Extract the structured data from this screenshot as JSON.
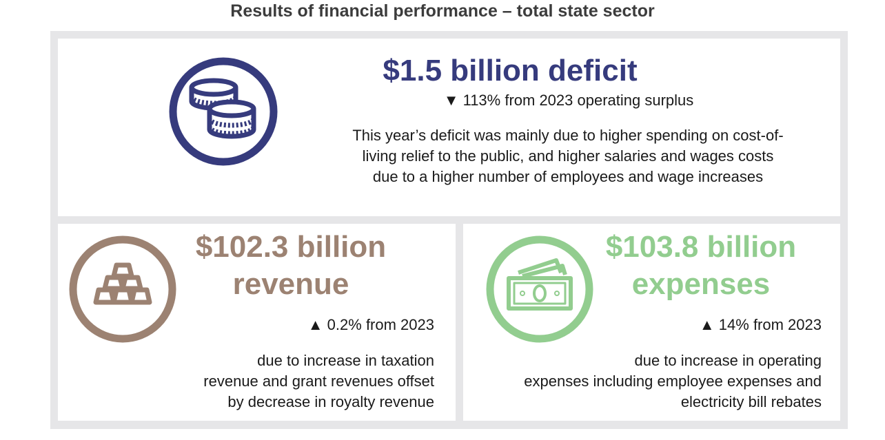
{
  "title": "Results of financial performance – total state sector",
  "colors": {
    "deficit": "#363b7d",
    "revenue": "#9c8272",
    "expenses": "#92cd8f",
    "frame": "#e6e6e8"
  },
  "deficit": {
    "icon": "coins-icon",
    "headline": "$1.5 billion deficit",
    "change": "▼ 113% from 2023 operating surplus",
    "description": [
      "This year’s deficit was mainly due to higher spending on cost-of-",
      "living relief to the public, and higher salaries and wages costs",
      "due to a higher number of employees and wage increases"
    ]
  },
  "revenue": {
    "icon": "gold-bars-icon",
    "headline": [
      "$102.3 billion",
      "revenue"
    ],
    "change": "▲ 0.2% from 2023",
    "description": [
      "due to increase in taxation",
      "revenue and grant revenues offset",
      "by decrease in royalty revenue"
    ]
  },
  "expenses": {
    "icon": "banknotes-icon",
    "headline": [
      "$103.8 billion",
      "expenses"
    ],
    "change": "▲ 14% from 2023",
    "description": [
      "due to increase in operating",
      "expenses including employee expenses and",
      "electricity bill rebates"
    ]
  }
}
